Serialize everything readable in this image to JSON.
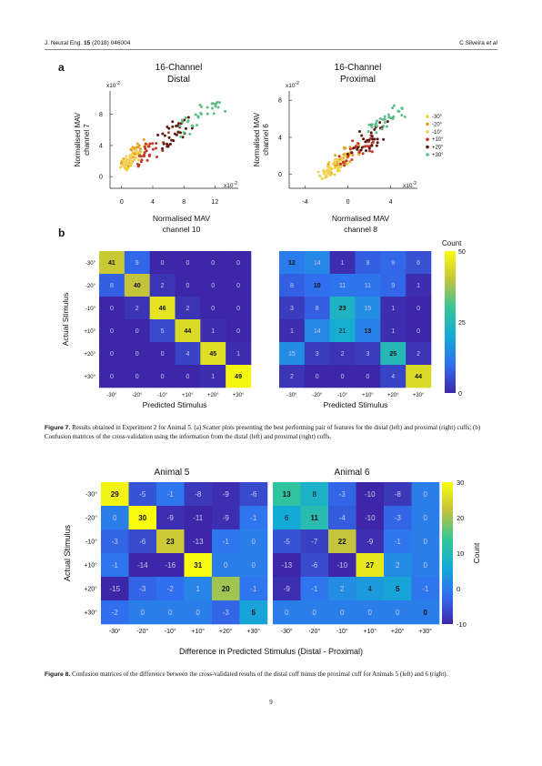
{
  "header": {
    "journal": "J. Neural Eng.",
    "volume": "15",
    "year_id": "(2018) 046004",
    "authors": "C Silveira",
    "etal": "et al"
  },
  "panel_a": "a",
  "panel_b": "b",
  "scatter": [
    {
      "title1": "16-Channel",
      "title2": "Distal",
      "ylabel1": "Normalised MAV",
      "ylabel2": "channel 7",
      "xlabel1": "Normalised MAV",
      "xlabel2": "channel 10",
      "xexp": "x10",
      "xexp_pow": "-2",
      "yexp": "x10",
      "yexp_pow": "-2",
      "xticks": [
        "0",
        "4",
        "8",
        "12"
      ],
      "yticks": [
        "0",
        "4",
        "8"
      ]
    },
    {
      "title1": "16-Channel",
      "title2": "Proximal",
      "ylabel1": "Normalised MAV",
      "ylabel2": "channel 6",
      "xlabel1": "Normalised MAV",
      "xlabel2": "channel 8",
      "xexp": "x10",
      "xexp_pow": "-2",
      "yexp": "x10",
      "yexp_pow": "-2",
      "xticks": [
        "-4",
        "0",
        "4"
      ],
      "yticks": [
        "0",
        "4",
        "8"
      ]
    }
  ],
  "legend": [
    {
      "label": "-30°",
      "color": "#f2d02e"
    },
    {
      "label": "-20°",
      "color": "#e5a020"
    },
    {
      "label": "-10°",
      "color": "#f0d060"
    },
    {
      "label": "+10°",
      "color": "#c0392b"
    },
    {
      "label": "+20°",
      "color": "#5a1a10"
    },
    {
      "label": "+30°",
      "color": "#5fbf88"
    }
  ],
  "categories": [
    "-30°",
    "-20°",
    "-10°",
    "+10°",
    "+20°",
    "+30°"
  ],
  "fig7_matrices": [
    [
      [
        41,
        9,
        0,
        0,
        0,
        0
      ],
      [
        8,
        40,
        2,
        0,
        0,
        0
      ],
      [
        0,
        2,
        46,
        2,
        0,
        0
      ],
      [
        0,
        0,
        5,
        44,
        1,
        0
      ],
      [
        0,
        0,
        0,
        4,
        45,
        1
      ],
      [
        0,
        0,
        0,
        0,
        1,
        49
      ]
    ],
    [
      [
        12,
        14,
        1,
        8,
        9,
        6
      ],
      [
        8,
        10,
        11,
        11,
        9,
        1
      ],
      [
        3,
        8,
        23,
        15,
        1,
        0
      ],
      [
        1,
        14,
        21,
        13,
        1,
        0
      ],
      [
        15,
        3,
        2,
        3,
        25,
        2
      ],
      [
        2,
        0,
        0,
        0,
        4,
        44
      ]
    ]
  ],
  "fig7_bold": [
    [
      [
        1,
        0,
        0,
        0,
        0,
        0
      ],
      [
        0,
        1,
        0,
        0,
        0,
        0
      ],
      [
        0,
        0,
        1,
        0,
        0,
        0
      ],
      [
        0,
        0,
        0,
        1,
        0,
        0
      ],
      [
        0,
        0,
        0,
        0,
        1,
        0
      ],
      [
        0,
        0,
        0,
        0,
        0,
        1
      ]
    ],
    [
      [
        1,
        0,
        0,
        0,
        0,
        0
      ],
      [
        0,
        1,
        0,
        0,
        0,
        0
      ],
      [
        0,
        0,
        1,
        0,
        0,
        0
      ],
      [
        0,
        0,
        0,
        1,
        0,
        0
      ],
      [
        0,
        0,
        0,
        0,
        1,
        0
      ],
      [
        0,
        0,
        0,
        0,
        0,
        1
      ]
    ]
  ],
  "fig7_ylabel": "Actual Stimulus",
  "fig7_xlabel": "Predicted Stimulus",
  "fig7_cbar": {
    "title": "Count",
    "ticks": [
      "50",
      "25",
      "0"
    ],
    "range": [
      0,
      50
    ]
  },
  "fig7_caption": {
    "label": "Figure 7.",
    "text": " Results obtained in Experiment 2 for Animal 5. (a) Scatter plots presenting the best performing pair of features for the distal (left) and proximal (right) cuffs; (b) Confusion matrices of the cross-validation using the information from the distal (left) and proximal (right) cuffs."
  },
  "fig8_titles": [
    "Animal 5",
    "Animal 6"
  ],
  "fig8_matrices": [
    [
      [
        29,
        -5,
        -1,
        -8,
        -9,
        -6
      ],
      [
        0,
        30,
        -9,
        -11,
        -9,
        -1
      ],
      [
        -3,
        -6,
        23,
        -13,
        -1,
        0
      ],
      [
        -1,
        -14,
        -16,
        31,
        0,
        0
      ],
      [
        -15,
        -3,
        -2,
        1,
        20,
        -1
      ],
      [
        -2,
        0,
        0,
        0,
        -3,
        5
      ]
    ],
    [
      [
        13,
        8,
        -3,
        -10,
        -8,
        0
      ],
      [
        6,
        11,
        -4,
        -10,
        -3,
        0
      ],
      [
        -5,
        -7,
        22,
        -9,
        -1,
        0
      ],
      [
        -13,
        -6,
        -10,
        27,
        2,
        0
      ],
      [
        -9,
        -1,
        2,
        4,
        5,
        -1
      ],
      [
        0,
        0,
        0,
        0,
        0,
        0
      ]
    ]
  ],
  "fig8_ylabel": "Actual Stimulus",
  "fig8_xlabel": "Difference in Predicted Stimulus (Distal - Proximal)",
  "fig8_cbar": {
    "title": "Count",
    "ticks": [
      "30",
      "20",
      "10",
      "0",
      "-10"
    ],
    "range": [
      -10,
      30
    ]
  },
  "fig8_caption": {
    "label": "Figure 8.",
    "text": " Confusion matrices of the difference between the cross-validated results of the distal cuff minus the proximal cuff for Animals 5 (left) and 6 (right)."
  },
  "page_number": "9"
}
